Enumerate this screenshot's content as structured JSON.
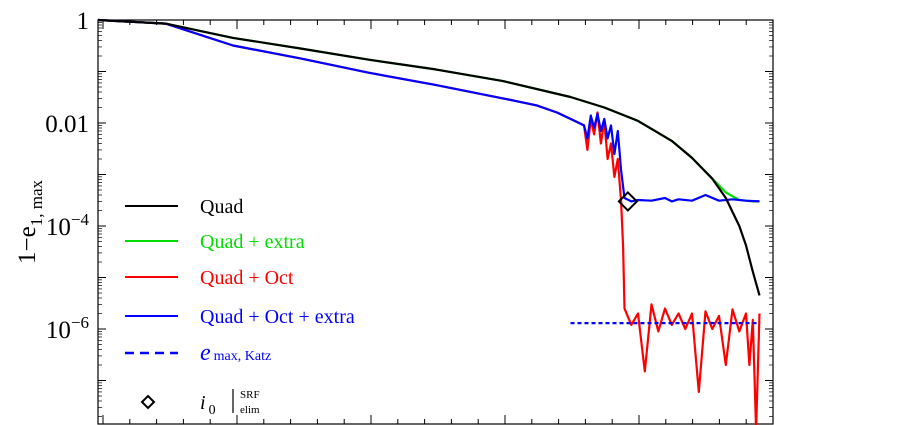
{
  "chart_data": {
    "type": "line",
    "title": "",
    "xlabel": "",
    "ylabel": {
      "main": "1−e",
      "sub": "1, max"
    },
    "y_scale": "log",
    "ylim": [
      1e-08,
      1
    ],
    "grid": false,
    "legend_position": "lower-left",
    "y_ticks": [
      {
        "value": 1,
        "base": "1",
        "exp": ""
      },
      {
        "value": 0.01,
        "base": "0.01",
        "exp": ""
      },
      {
        "value": 0.0001,
        "base": "10",
        "exp": "−4"
      },
      {
        "value": 1e-06,
        "base": "10",
        "exp": "−6"
      }
    ],
    "x_range": [
      0,
      1
    ],
    "series": [
      {
        "name": "Quad",
        "color": "#000000",
        "x": [
          0.0,
          0.1,
          0.2,
          0.3,
          0.4,
          0.5,
          0.6,
          0.7,
          0.75,
          0.8,
          0.85,
          0.88,
          0.91,
          0.93,
          0.95,
          0.96,
          0.97,
          0.98
        ],
        "y": [
          1.0,
          0.85,
          0.45,
          0.28,
          0.17,
          0.11,
          0.065,
          0.032,
          0.02,
          0.011,
          0.0045,
          0.0021,
          0.00083,
          0.00035,
          0.0001,
          4.2e-05,
          1.3e-05,
          4.5e-06
        ]
      },
      {
        "name": "Quad + extra",
        "color": "#00dd00",
        "x": [
          0.0,
          0.1,
          0.2,
          0.3,
          0.4,
          0.5,
          0.6,
          0.7,
          0.75,
          0.8,
          0.85,
          0.88,
          0.91,
          0.93,
          0.95,
          0.96,
          0.97,
          0.98
        ],
        "y": [
          1.0,
          0.85,
          0.45,
          0.28,
          0.17,
          0.11,
          0.065,
          0.032,
          0.02,
          0.011,
          0.0045,
          0.0021,
          0.00083,
          0.00045,
          0.00032,
          0.00031,
          0.0003,
          0.0003
        ]
      },
      {
        "name": "Quad + Oct",
        "color": "#ff0000",
        "x": [
          0.0,
          0.1,
          0.2,
          0.3,
          0.4,
          0.5,
          0.6,
          0.65,
          0.68,
          0.7,
          0.72,
          0.725,
          0.73,
          0.735,
          0.74,
          0.745,
          0.75,
          0.755,
          0.76,
          0.765,
          0.77,
          0.775,
          0.778,
          0.78,
          0.79,
          0.8,
          0.81,
          0.82,
          0.83,
          0.84,
          0.85,
          0.86,
          0.87,
          0.88,
          0.89,
          0.9,
          0.91,
          0.92,
          0.93,
          0.94,
          0.95,
          0.96,
          0.965,
          0.97,
          0.975,
          0.98
        ],
        "y": [
          1.0,
          0.85,
          0.32,
          0.18,
          0.095,
          0.055,
          0.03,
          0.022,
          0.016,
          0.012,
          0.009,
          0.003,
          0.012,
          0.006,
          0.016,
          0.004,
          0.011,
          0.002,
          0.004,
          0.0009,
          0.002,
          0.0003,
          4e-05,
          2.5e-06,
          1.2e-06,
          2e-06,
          1.5e-07,
          3e-06,
          9e-07,
          2.5e-06,
          1.2e-06,
          2e-06,
          1e-06,
          2e-06,
          6e-08,
          2.2e-06,
          1e-06,
          1.8e-06,
          2e-07,
          2.4e-06,
          9e-07,
          2e-06,
          2e-07,
          1.5e-06,
          1e-08,
          2e-06
        ]
      },
      {
        "name": "Quad + Oct + extra",
        "color": "#0000ff",
        "x": [
          0.0,
          0.1,
          0.2,
          0.3,
          0.4,
          0.5,
          0.6,
          0.65,
          0.68,
          0.7,
          0.72,
          0.725,
          0.73,
          0.735,
          0.74,
          0.745,
          0.75,
          0.755,
          0.76,
          0.765,
          0.77,
          0.775,
          0.78,
          0.79,
          0.8,
          0.82,
          0.84,
          0.85,
          0.86,
          0.88,
          0.9,
          0.92,
          0.94,
          0.96,
          0.98
        ],
        "y": [
          1.0,
          0.85,
          0.32,
          0.18,
          0.095,
          0.055,
          0.03,
          0.022,
          0.016,
          0.012,
          0.009,
          0.005,
          0.014,
          0.008,
          0.015,
          0.007,
          0.012,
          0.005,
          0.009,
          0.0025,
          0.007,
          0.0012,
          0.00035,
          0.0003,
          0.00032,
          0.00031,
          0.00035,
          0.0003,
          0.00033,
          0.00031,
          0.0004,
          0.00031,
          0.00033,
          0.00031,
          0.0003
        ]
      },
      {
        "name": "e_max, Katz",
        "color": "#0000ff",
        "dashed": true,
        "x": [
          0.7,
          0.98
        ],
        "y": [
          1.3e-06,
          1.3e-06
        ]
      }
    ],
    "marker": {
      "name": "i_0 |SRF elim",
      "shape": "diamond",
      "x": 0.785,
      "y": 0.0003
    },
    "legend": [
      {
        "label": "Quad",
        "color": "#000000",
        "style": "solid"
      },
      {
        "label": "Quad + extra",
        "color": "#00dd00",
        "style": "solid"
      },
      {
        "label": "Quad + Oct",
        "color": "#ff0000",
        "style": "solid"
      },
      {
        "label": "Quad + Oct + extra",
        "color": "#0000ff",
        "style": "solid"
      },
      {
        "label": "e",
        "sub": "max, Katz",
        "color": "#0000ff",
        "style": "dashed"
      },
      {
        "label": "i",
        "sub": "0",
        "sup2": "SRF",
        "sub2": "elim",
        "color": "#000000",
        "style": "diamond"
      }
    ]
  }
}
